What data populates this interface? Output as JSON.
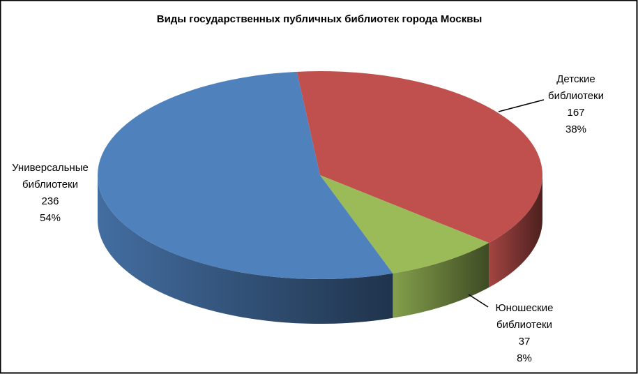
{
  "chart_data": {
    "type": "pie3d",
    "title": "Виды государственных публичных библиотек города Москвы",
    "categories": [
      "Детские библиотеки",
      "Юношеские библиотеки",
      "Универсальные библиотеки"
    ],
    "values": [
      167,
      37,
      236
    ],
    "percentages": [
      {
        "value": 38,
        "label": "38%"
      },
      {
        "value": 8,
        "label": "8%"
      },
      {
        "value": 54,
        "label": "54%"
      }
    ],
    "colors": [
      "#c0504d",
      "#9bbb59",
      "#4f81bd"
    ]
  }
}
